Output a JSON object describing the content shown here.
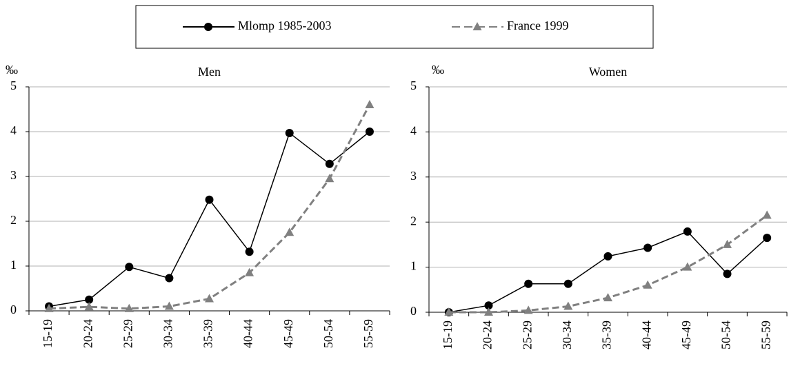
{
  "chart_data": [
    {
      "type": "line",
      "title": "Men",
      "y_label": "‰",
      "categories": [
        "15-19",
        "20-24",
        "25-29",
        "30-34",
        "35-39",
        "40-44",
        "45-49",
        "50-54",
        "55-59"
      ],
      "series": [
        {
          "name": "Mlomp 1985-2003",
          "color": "#000000",
          "marker": "circle",
          "dashed": false,
          "values": [
            0.1,
            0.25,
            0.98,
            0.73,
            2.48,
            1.32,
            3.97,
            3.28,
            4.0
          ]
        },
        {
          "name": "France 1999",
          "color": "#808080",
          "marker": "triangle",
          "dashed": true,
          "values": [
            0.05,
            0.09,
            0.05,
            0.1,
            0.27,
            0.85,
            1.75,
            2.95,
            4.6
          ]
        }
      ],
      "ylim": [
        0,
        5
      ],
      "yticks": [
        0,
        1,
        2,
        3,
        4,
        5
      ],
      "grid": true
    },
    {
      "type": "line",
      "title": "Women",
      "y_label": "‰",
      "categories": [
        "15-19",
        "20-24",
        "25-29",
        "30-34",
        "35-39",
        "40-44",
        "45-49",
        "50-54",
        "55-59"
      ],
      "series": [
        {
          "color": "#000000",
          "marker": "circle",
          "dashed": false,
          "values": [
            0.0,
            0.15,
            0.63,
            0.63,
            1.24,
            1.43,
            1.79,
            0.85,
            1.65
          ]
        },
        {
          "color": "#808080",
          "marker": "triangle",
          "dashed": true,
          "values": [
            0.0,
            0.0,
            0.04,
            0.13,
            0.32,
            0.6,
            1.0,
            1.5,
            2.15
          ]
        }
      ],
      "ylim": [
        0,
        5
      ],
      "yticks": [
        0,
        1,
        2,
        3,
        4,
        5
      ],
      "grid": true
    }
  ]
}
